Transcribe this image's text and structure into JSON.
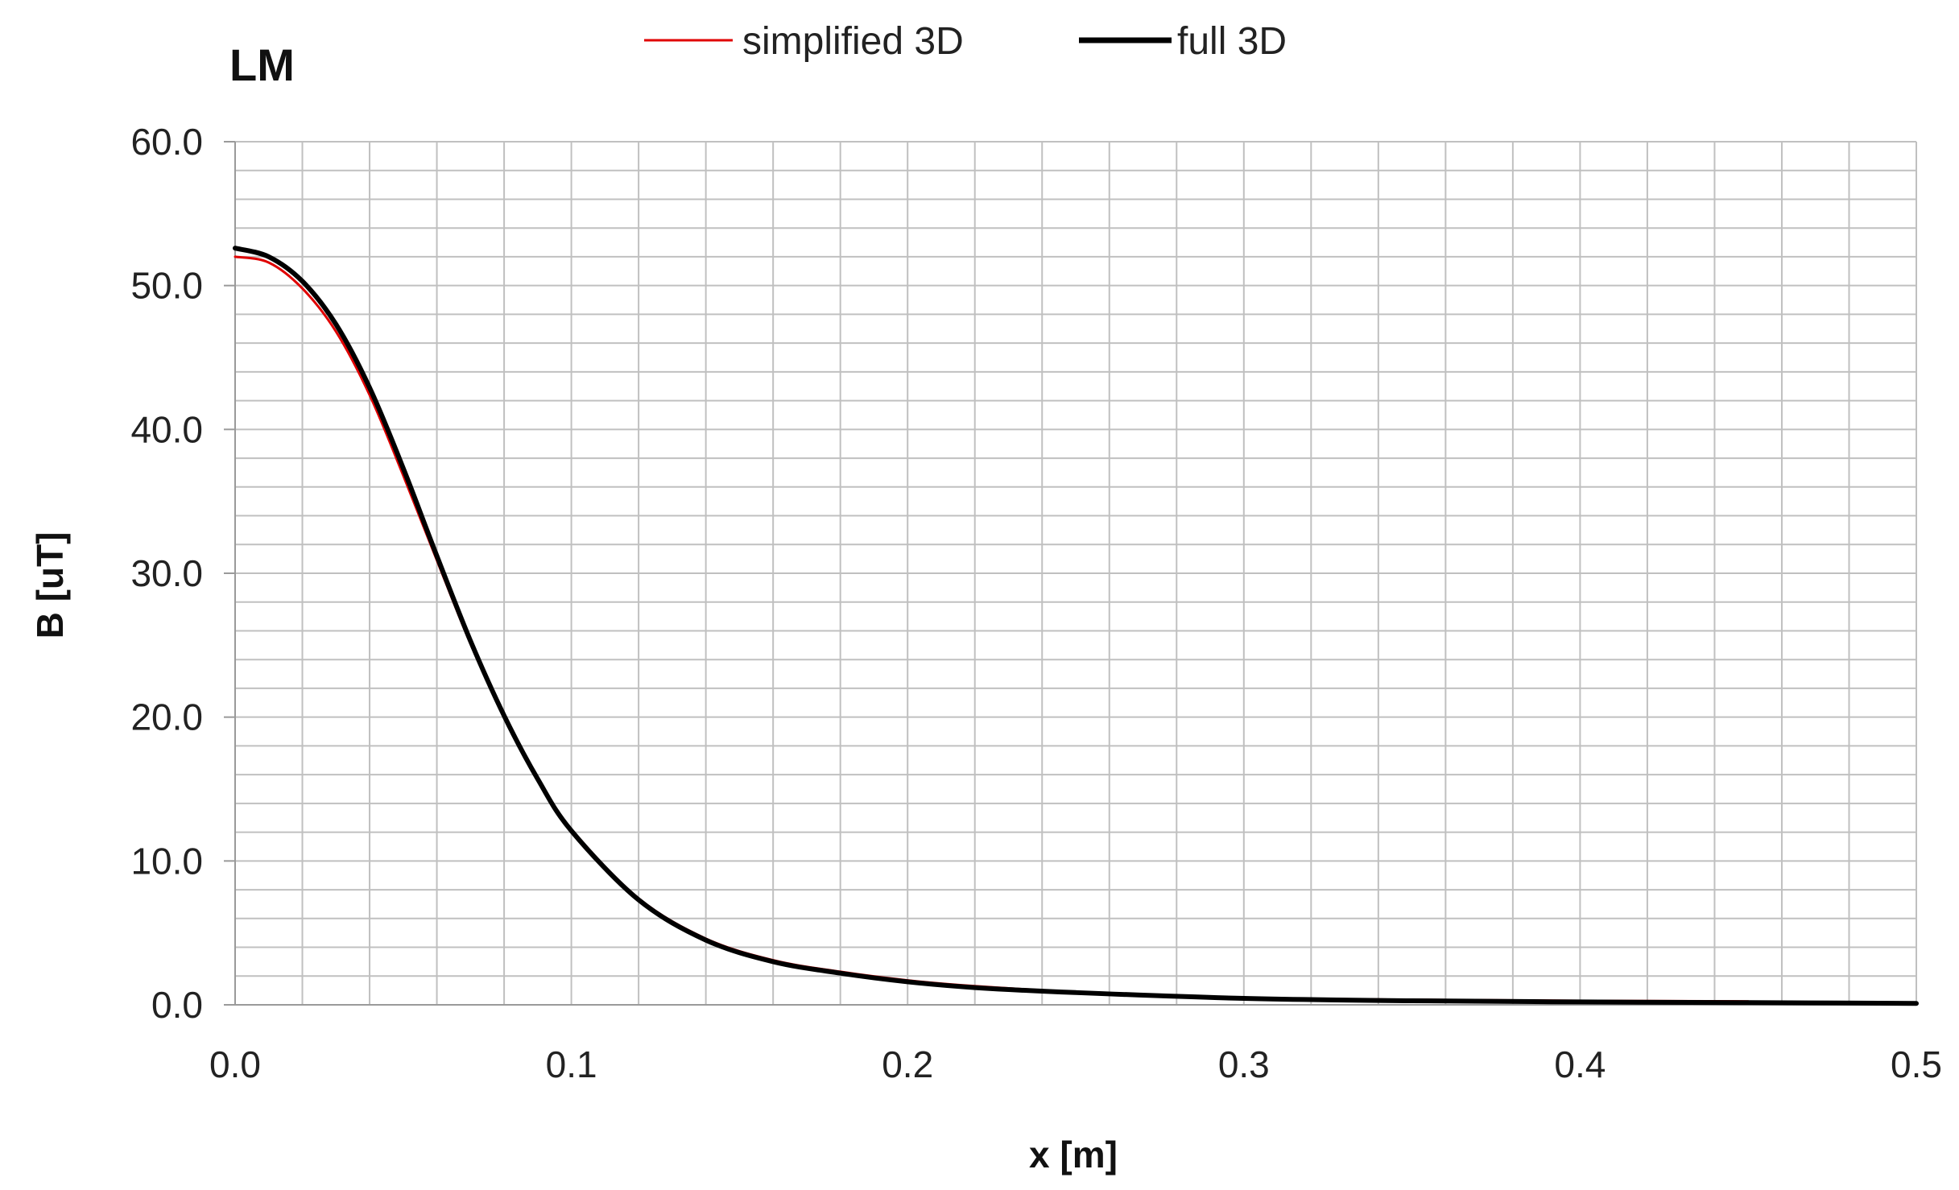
{
  "chart_data": {
    "type": "line",
    "title": "LM",
    "xlabel": "x [m]",
    "ylabel": "B [uT]",
    "xlim": [
      0,
      0.5
    ],
    "ylim": [
      0,
      60
    ],
    "x_tick_labels": [
      "0.0",
      "0.1",
      "0.2",
      "0.3",
      "0.4",
      "0.5"
    ],
    "y_tick_labels": [
      "0.0",
      "10.0",
      "20.0",
      "30.0",
      "40.0",
      "50.0",
      "60.0"
    ],
    "x_ticks": [
      0,
      0.1,
      0.2,
      0.3,
      0.4,
      0.5
    ],
    "y_ticks": [
      0,
      10,
      20,
      30,
      40,
      50,
      60
    ],
    "x_minor_step": 0.02,
    "y_minor_step": 2,
    "grid": true,
    "legend_position": "top-center",
    "series": [
      {
        "name": "simplified 3D",
        "color": "#e00000",
        "x": [
          0,
          0.01,
          0.02,
          0.03,
          0.04,
          0.05,
          0.06,
          0.07,
          0.08,
          0.09,
          0.1,
          0.12,
          0.14,
          0.16,
          0.18,
          0.2,
          0.22,
          0.25,
          0.3,
          0.35,
          0.4,
          0.45
        ],
        "y": [
          52.0,
          51.6,
          49.8,
          46.8,
          42.4,
          36.8,
          30.9,
          25.1,
          20.0,
          15.6,
          12.2,
          7.4,
          4.6,
          3.1,
          2.3,
          1.7,
          1.3,
          0.9,
          0.5,
          0.35,
          0.28,
          0.24
        ]
      },
      {
        "name": "full 3D",
        "color": "#000000",
        "x": [
          0,
          0.01,
          0.02,
          0.03,
          0.04,
          0.05,
          0.06,
          0.07,
          0.08,
          0.09,
          0.1,
          0.12,
          0.14,
          0.16,
          0.18,
          0.2,
          0.22,
          0.25,
          0.3,
          0.35,
          0.4,
          0.45,
          0.5
        ],
        "y": [
          52.6,
          52.0,
          50.3,
          47.3,
          42.9,
          37.3,
          31.2,
          25.3,
          20.1,
          15.7,
          12.1,
          7.3,
          4.5,
          3.0,
          2.2,
          1.6,
          1.2,
          0.85,
          0.45,
          0.28,
          0.2,
          0.15,
          0.1
        ]
      }
    ]
  }
}
